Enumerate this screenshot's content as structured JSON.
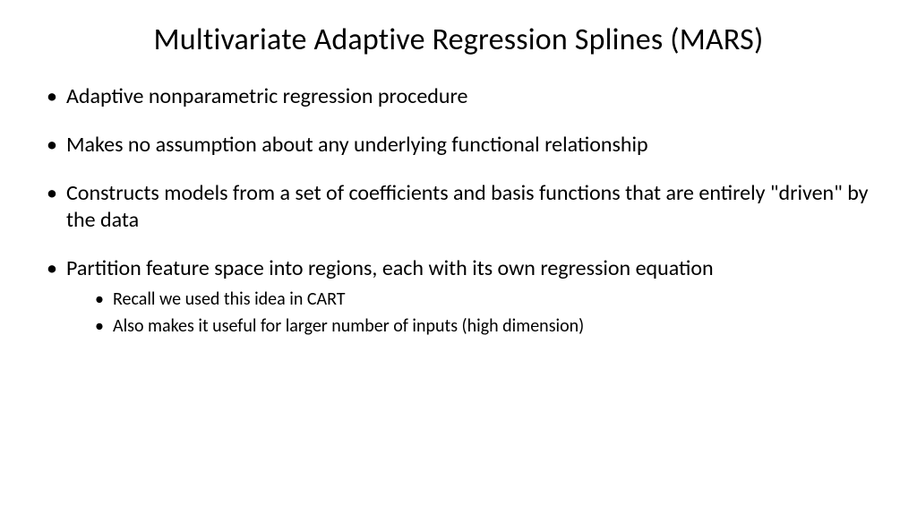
{
  "slide": {
    "title": "Multivariate Adaptive Regression Splines (MARS)",
    "title_fontsize": 34,
    "title_color": "#000000",
    "background_color": "#ffffff",
    "bullets": [
      {
        "text": "Adaptive nonparametric regression procedure",
        "sub": []
      },
      {
        "text": "Makes no assumption about any underlying functional relationship",
        "sub": []
      },
      {
        "text": "Constructs models from a set of coefficients and basis functions that are entirely \"driven\" by the data",
        "sub": []
      },
      {
        "text": "Partition feature space into regions, each with its own regression equation",
        "sub": [
          "Recall we used this idea in CART",
          "Also makes it useful for larger number of inputs (high dimension)"
        ]
      }
    ],
    "main_bullet_fontsize": 24,
    "sub_bullet_fontsize": 20,
    "text_color": "#000000"
  }
}
